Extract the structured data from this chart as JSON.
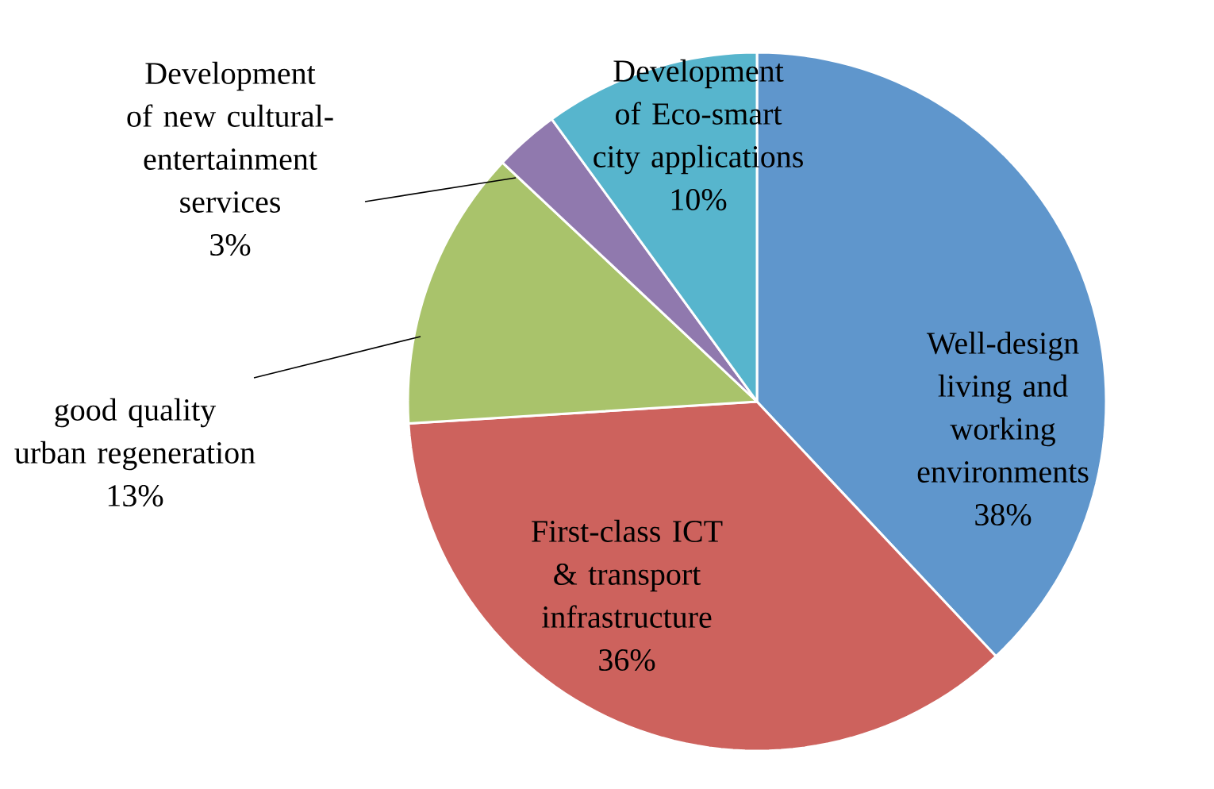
{
  "chart_data": {
    "type": "pie",
    "categories": [
      "Well-design living and working environments",
      "First-class ICT & transport infrastructure",
      "good quality urban regeneration",
      "Development of new cultural-entertainment services",
      "Development of Eco-smart city applications"
    ],
    "values": [
      38,
      36,
      13,
      3,
      10
    ],
    "value_labels": [
      "38%",
      "36%",
      "13%",
      "3%",
      "10%"
    ],
    "colors": [
      "#5f96cc",
      "#cd625d",
      "#a9c36b",
      "#9079ae",
      "#57b5cd"
    ]
  }
}
